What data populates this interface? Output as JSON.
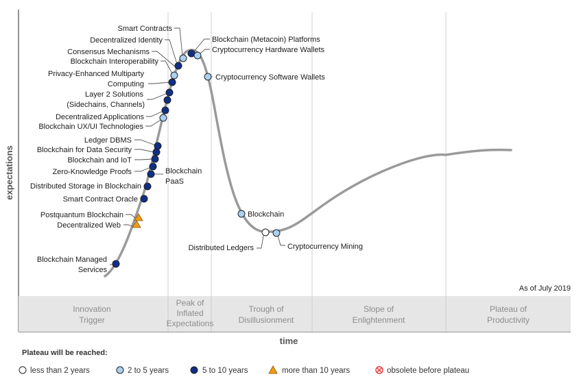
{
  "axes": {
    "y_label": "expectations",
    "x_label": "time"
  },
  "as_of": "As of July 2019",
  "phases": [
    {
      "lines": [
        "Innovation",
        "Trigger"
      ]
    },
    {
      "lines": [
        "Peak of",
        "Inflated",
        "Expectations"
      ]
    },
    {
      "lines": [
        "Trough of",
        "Disillusionment"
      ]
    },
    {
      "lines": [
        "Slope of",
        "Enlightenment"
      ]
    },
    {
      "lines": [
        "Plateau of",
        "Productivity"
      ]
    }
  ],
  "category_colors": {
    "lt2": "#ffffff",
    "2to5": "#a9d0ef",
    "5to10": "#0f2f86",
    "gt10": "#f39c12",
    "obsolete": "#e53935"
  },
  "legend": {
    "title": "Plateau will be reached:",
    "items": [
      {
        "key": "lt2",
        "label": "less than 2 years"
      },
      {
        "key": "2to5",
        "label": "2 to 5 years"
      },
      {
        "key": "5to10",
        "label": "5 to 10 years"
      },
      {
        "key": "gt10",
        "label": "more than 10 years"
      },
      {
        "key": "obsolete",
        "label": "obsolete before plateau"
      }
    ]
  },
  "technologies": [
    {
      "lines": [
        "Smart Contracts"
      ],
      "category": "2to5"
    },
    {
      "lines": [
        "Decentralized Identity"
      ],
      "category": "5to10"
    },
    {
      "lines": [
        "Consensus Mechanisms"
      ],
      "category": "5to10"
    },
    {
      "lines": [
        "Blockchain Interoperability"
      ],
      "category": "2to5"
    },
    {
      "lines": [
        "Privacy-Enhanced Multiparty",
        "Computing"
      ],
      "category": "5to10"
    },
    {
      "lines": [
        "Layer 2 Solutions",
        "(Sidechains, Channels)"
      ],
      "category": "5to10"
    },
    {
      "lines": [
        "Decentralized Applications"
      ],
      "category": "5to10"
    },
    {
      "lines": [
        "Blockchain UX/UI Technologies"
      ],
      "category": "2to5"
    },
    {
      "lines": [
        "Ledger DBMS"
      ],
      "category": "5to10"
    },
    {
      "lines": [
        "Blockchain for Data Security"
      ],
      "category": "5to10"
    },
    {
      "lines": [
        "Blockchain and IoT"
      ],
      "category": "5to10"
    },
    {
      "lines": [
        "Zero-Knowledge Proofs"
      ],
      "category": "5to10"
    },
    {
      "lines": [
        "Distributed Storage in Blockchain"
      ],
      "category": "5to10"
    },
    {
      "lines": [
        "Smart Contract Oracle"
      ],
      "category": "5to10"
    },
    {
      "lines": [
        "Postquantum Blockchain"
      ],
      "category": "gt10"
    },
    {
      "lines": [
        "Decentralized Web"
      ],
      "category": "gt10"
    },
    {
      "lines": [
        "Blockchain Managed",
        "Services"
      ],
      "category": "5to10"
    },
    {
      "lines": [
        "Blockchain",
        "PaaS"
      ],
      "category": "5to10"
    },
    {
      "lines": [
        "Blockchain (Metacoin) Platforms"
      ],
      "category": "5to10"
    },
    {
      "lines": [
        "Cryptocurrency Hardware Wallets"
      ],
      "category": "2to5"
    },
    {
      "lines": [
        "Cryptocurrency Software Wallets"
      ],
      "category": "2to5"
    },
    {
      "lines": [
        "Blockchain"
      ],
      "category": "2to5"
    },
    {
      "lines": [
        "Distributed Ledgers"
      ],
      "category": "lt2"
    },
    {
      "lines": [
        "Cryptocurrency Mining"
      ],
      "category": "2to5"
    }
  ]
}
